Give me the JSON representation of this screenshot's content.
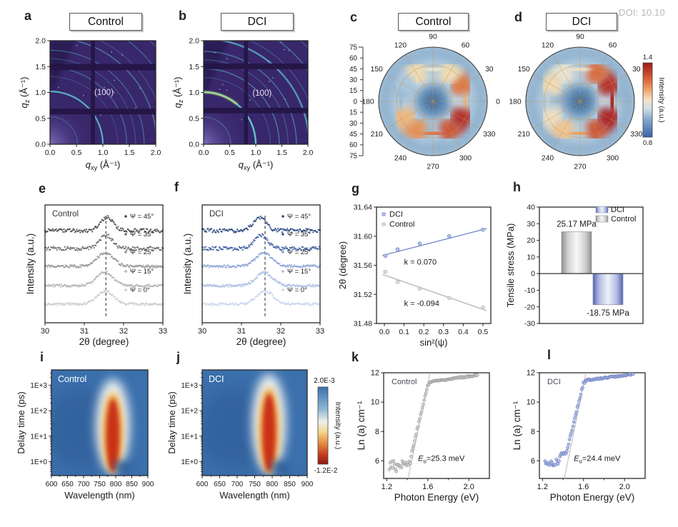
{
  "page": {
    "doi_text": "DOI: 10.10",
    "background": "#ffffff",
    "colors": {
      "giwaxs_bg": "#38276b",
      "giwaxs_gap": "#241546",
      "giwaxs_ring": "#5fc6ce",
      "ta_bg": "#3b70ac",
      "ta_core": "#c93318",
      "dci_blue": "#7288cc",
      "control_gray": "#b4b4b4",
      "polar_low": "#3a63a8",
      "polar_high": "#aa1e1f"
    }
  },
  "chart_data": [
    {
      "letter": "a",
      "type": "heatmap",
      "panel_title": "Control",
      "xlabel": "*q*_{xy} (Å⁻¹)",
      "ylabel": "*q*_{z} (Å⁻¹)",
      "xlim": [
        0,
        2
      ],
      "ylim": [
        0,
        2
      ],
      "xticks": [
        0,
        0.5,
        1,
        1.5,
        2
      ],
      "xtick_labels": [
        "0.0",
        "0.5",
        "1.0",
        "1.5",
        "2.0"
      ],
      "yticks": [
        0,
        0.5,
        1,
        1.5,
        2
      ],
      "ytick_labels": [
        "0.0",
        "0.5",
        "1.0",
        "1.5",
        "2.0"
      ],
      "annotation": "(100)",
      "annotation_pos": [
        1.02,
        0.93
      ],
      "rings": [
        {
          "q": 0.52,
          "o": 0.3,
          "w": 1.3
        },
        {
          "q": 1.0,
          "o": 0.85,
          "w": 2.2
        },
        {
          "q": 1.28,
          "o": 0.22,
          "w": 1.2
        },
        {
          "q": 1.45,
          "o": 0.42,
          "w": 1.4
        },
        {
          "q": 1.62,
          "o": 0.28,
          "w": 1.2
        },
        {
          "q": 1.78,
          "o": 0.4,
          "w": 1.4
        },
        {
          "q": 2.02,
          "o": 0.5,
          "w": 1.6
        },
        {
          "q": 2.18,
          "o": 0.28,
          "w": 1.2
        },
        {
          "q": 2.45,
          "o": 0.38,
          "w": 1.4
        },
        {
          "q": 2.72,
          "o": 0.3,
          "w": 1.3
        }
      ],
      "gaps_h": [
        [
          0.565,
          0.675
        ],
        [
          1.4,
          1.52
        ]
      ],
      "gaps_v": [
        [
          0.775,
          0.85
        ]
      ]
    },
    {
      "letter": "b",
      "type": "heatmap",
      "panel_title": "DCI",
      "xlabel": "*q*_{xy} (Å⁻¹)",
      "ylabel": "*q*_{z} (Å⁻¹)",
      "xlim": [
        0,
        2
      ],
      "ylim": [
        0,
        2
      ],
      "xticks": [
        0,
        0.5,
        1,
        1.5,
        2
      ],
      "xtick_labels": [
        "0.0",
        "0.5",
        "1.0",
        "1.5",
        "2.0"
      ],
      "yticks": [
        0,
        0.5,
        1,
        1.5,
        2
      ],
      "ytick_labels": [
        "0.0",
        "0.5",
        "1.0",
        "1.5",
        "2.0"
      ],
      "annotation": "(100)",
      "annotation_pos": [
        1.12,
        0.93
      ],
      "rings": [
        {
          "q": 0.52,
          "o": 0.35,
          "w": 1.3
        },
        {
          "q": 1.0,
          "o": 1.0,
          "w": 2.4
        },
        {
          "q": 1.28,
          "o": 0.28,
          "w": 1.2
        },
        {
          "q": 1.45,
          "o": 0.5,
          "w": 1.5
        },
        {
          "q": 1.62,
          "o": 0.32,
          "w": 1.2
        },
        {
          "q": 1.78,
          "o": 0.48,
          "w": 1.5
        },
        {
          "q": 2.02,
          "o": 0.7,
          "w": 2.4
        },
        {
          "q": 2.18,
          "o": 0.32,
          "w": 1.2
        },
        {
          "q": 2.45,
          "o": 0.45,
          "w": 1.5
        },
        {
          "q": 2.72,
          "o": 0.35,
          "w": 1.3
        }
      ],
      "highlight": {
        "q": 1.0,
        "a1": 50,
        "a2": 96
      },
      "gaps_h": [
        [
          0.595,
          0.7
        ],
        [
          1.44,
          1.55
        ]
      ],
      "gaps_v": [
        [
          0.775,
          0.85
        ]
      ]
    },
    {
      "letter": "c",
      "type": "polar_heatmap",
      "panel_title": "Control",
      "angle_tick_labels": [
        "0",
        "30",
        "60",
        "90",
        "120",
        "150",
        "180",
        "210",
        "240",
        "270",
        "300",
        "330"
      ],
      "radial_tick_labels": [
        "75",
        "60",
        "45",
        "30",
        "15",
        "0",
        "15",
        "30",
        "45",
        "60",
        "75"
      ],
      "has_radial_axis": true,
      "intensity_range": [
        0.8,
        1.4
      ],
      "ring_intensity": {
        "0": 1.18,
        "30": 1.28,
        "60": 1.12,
        "90": 1.08,
        "120": 1.12,
        "150": 0.98,
        "180": 0.96,
        "210": 1.18,
        "240": 1.24,
        "270": 1.28,
        "300": 1.33,
        "330": 1.38
      }
    },
    {
      "letter": "d",
      "type": "polar_heatmap",
      "panel_title": "DCI",
      "angle_tick_labels": [
        "0",
        "30",
        "60",
        "90",
        "120",
        "150",
        "180",
        "210",
        "240",
        "270",
        "300",
        "330"
      ],
      "radial_tick_labels": [
        "75",
        "60",
        "45",
        "30",
        "15",
        "0",
        "15",
        "30",
        "45",
        "60",
        "75"
      ],
      "has_radial_axis": false,
      "intensity_range": [
        0.8,
        1.4
      ],
      "ring_intensity": {
        "0": 1.4,
        "30": 1.38,
        "60": 1.3,
        "90": 1.1,
        "120": 1.08,
        "150": 1.12,
        "180": 1.0,
        "210": 1.1,
        "240": 1.16,
        "270": 1.22,
        "300": 1.33,
        "330": 1.4
      },
      "colorbar": {
        "top_label": "1.4",
        "bottom_label": "0.8",
        "label": "Intensity (a.u.)"
      }
    },
    {
      "letter": "e",
      "type": "line",
      "inner_label": "Control",
      "xlabel": "2θ (degree)",
      "ylabel": "Intensity (a.u.)",
      "xlim": [
        30,
        33
      ],
      "xticks": [
        30,
        31,
        32,
        33
      ],
      "xtick_labels": [
        "30",
        "31",
        "32",
        "33"
      ],
      "dash_x": 31.55,
      "series": [
        {
          "label": "Ψ = 45°",
          "color": "#4a4a4a",
          "center": 31.58
        },
        {
          "label": "Ψ = 35°",
          "color": "#6b6b6b",
          "center": 31.56
        },
        {
          "label": "Ψ = 25°",
          "color": "#949494",
          "center": 31.53
        },
        {
          "label": "Ψ = 15°",
          "color": "#b2b2b2",
          "center": 31.52
        },
        {
          "label": "Ψ = 0°",
          "color": "#cccccc",
          "center": 31.53
        }
      ]
    },
    {
      "letter": "f",
      "type": "line",
      "inner_label": "DCI",
      "xlabel": "2θ (degree)",
      "ylabel": "Intensity (a.u.)",
      "xlim": [
        30,
        33
      ],
      "xticks": [
        30,
        31,
        32,
        33
      ],
      "xtick_labels": [
        "30",
        "31",
        "32",
        "33"
      ],
      "dash_x": 31.6,
      "series": [
        {
          "label": "Ψ = 45°",
          "color": "#27477e",
          "center": 31.46
        },
        {
          "label": "Ψ = 35°",
          "color": "#3c5d9e",
          "center": 31.5
        },
        {
          "label": "Ψ = 25°",
          "color": "#8aa2d4",
          "center": 31.57
        },
        {
          "label": "Ψ = 15°",
          "color": "#a9bce1",
          "center": 31.58
        },
        {
          "label": "Ψ = 0°",
          "color": "#c9d5ee",
          "center": 31.6
        }
      ]
    },
    {
      "letter": "g",
      "type": "scatter_line",
      "xlabel": "sin²(ψ)",
      "ylabel": "2θ (degree)",
      "xlim": [
        -0.04,
        0.54
      ],
      "ylim": [
        31.48,
        31.64
      ],
      "xticks": [
        0,
        0.1,
        0.2,
        0.3,
        0.4,
        0.5
      ],
      "xtick_labels": [
        "0.0",
        "0.1",
        "0.2",
        "0.3",
        "0.4",
        "0.5"
      ],
      "yticks": [
        31.48,
        31.52,
        31.56,
        31.6,
        31.64
      ],
      "ytick_labels": [
        "31.48",
        "31.52",
        "31.56",
        "31.60",
        "31.64"
      ],
      "series": [
        {
          "name": "DCI",
          "color": "#7288cc",
          "light": "#b9c4ea",
          "points": [
            [
              0.005,
              31.573
            ],
            [
              0.067,
              31.582
            ],
            [
              0.179,
              31.59
            ],
            [
              0.329,
              31.6
            ],
            [
              0.5,
              31.609
            ]
          ],
          "fit": [
            [
              -0.01,
              31.5735
            ],
            [
              0.52,
              31.6105
            ]
          ],
          "slope_label": "k = 0.070",
          "slope_label_pos": [
            0.1,
            31.561
          ]
        },
        {
          "name": "Control",
          "color": "#b4b4b4",
          "light": "#dedede",
          "points": [
            [
              0.005,
              31.551
            ],
            [
              0.067,
              31.537
            ],
            [
              0.179,
              31.528
            ],
            [
              0.329,
              31.515
            ],
            [
              0.5,
              31.502
            ]
          ],
          "fit": [
            [
              -0.01,
              31.5475
            ],
            [
              0.52,
              31.4975
            ]
          ],
          "slope_label": "k = -0.094",
          "slope_label_pos": [
            0.1,
            31.504
          ]
        }
      ]
    },
    {
      "letter": "h",
      "type": "bar",
      "ylabel": "Tensile stress (MPa)",
      "ylim": [
        -30,
        40
      ],
      "yticks": [
        -30,
        -20,
        -10,
        0,
        10,
        20,
        30,
        40
      ],
      "ytick_labels": [
        "-30",
        "-20",
        "-10",
        "0",
        "10",
        "20",
        "30",
        "40"
      ],
      "bars": [
        {
          "name": "Control",
          "value": 25.17,
          "value_label": "25.17 MPa",
          "key": "control"
        },
        {
          "name": "DCI",
          "value": -18.75,
          "value_label": "-18.75 MPa",
          "key": "dci"
        }
      ],
      "legend": [
        {
          "label": "DCI",
          "key": "dci"
        },
        {
          "label": "Control",
          "key": "control"
        }
      ],
      "colors": {
        "dci_edge": "#5066b5",
        "dci_mid": "#eef2fc",
        "control_edge": "#8f8f8f",
        "control_mid": "#f8f8f8"
      }
    },
    {
      "letter": "i",
      "type": "heatmap",
      "inner_label": "Control",
      "xlabel": "Wavelength (nm)",
      "ylabel": "Delay time (ps)",
      "xlim": [
        600,
        900
      ],
      "xticks": [
        600,
        650,
        700,
        750,
        800,
        850,
        900
      ],
      "xtick_labels": [
        "600",
        "650",
        "700",
        "750",
        "800",
        "850",
        "900"
      ],
      "ytick_labels": [
        "1E+0",
        "1E+1",
        "1E+2",
        "1E+3"
      ],
      "streak_nm": 791,
      "streak_top_exp": 2.75
    },
    {
      "letter": "j",
      "type": "heatmap",
      "inner_label": "DCI",
      "xlabel": "Wavelength (nm)",
      "ylabel": "Delay time (ps)",
      "xlim": [
        600,
        900
      ],
      "xticks": [
        600,
        650,
        700,
        750,
        800,
        850,
        900
      ],
      "xtick_labels": [
        "600",
        "650",
        "700",
        "750",
        "800",
        "850",
        "900"
      ],
      "ytick_labels": [
        "1E+0",
        "1E+1",
        "1E+2",
        "1E+3"
      ],
      "streak_nm": 791,
      "streak_top_exp": 2.95,
      "colorbar": {
        "top_label": "2.0E-3",
        "bottom_label": "-1.2E-2",
        "label": "Intensity (a.u.)"
      }
    },
    {
      "letter": "k",
      "type": "scatter",
      "inner_label": "Control",
      "xlabel": "Photon Energy (eV)",
      "ylabel": "Ln (a) cm⁻¹",
      "xlim": [
        1.17,
        2.2
      ],
      "ylim": [
        4.8,
        12
      ],
      "xticks": [
        1.2,
        1.6,
        2.0
      ],
      "xtick_labels": [
        "1.2",
        "1.6",
        "2.0"
      ],
      "minor_xticks": [
        1.4,
        1.8
      ],
      "yticks": [
        6,
        8,
        10,
        12
      ],
      "ytick_labels": [
        "6",
        "8",
        "10",
        "12"
      ],
      "annotation": "*E*_{u}=25.3 meV",
      "annotation_pos": [
        1.505,
        6.0
      ],
      "color": "#9a9a9a",
      "light": "#d2d2d2",
      "keypoints": [
        [
          1.225,
          5.75
        ],
        [
          1.43,
          5.85
        ],
        [
          1.445,
          6.6
        ],
        [
          1.6,
          11.15
        ],
        [
          1.63,
          11.4
        ],
        [
          2.09,
          11.85
        ]
      ],
      "fit": [
        [
          1.393,
          4.3
        ],
        [
          1.645,
          12.8
        ]
      ],
      "noise_zones": [
        [
          1.45,
          0.27
        ],
        [
          1.62,
          0.07
        ],
        [
          2.2,
          0.05
        ]
      ]
    },
    {
      "letter": "l",
      "type": "scatter",
      "inner_label": "DCI",
      "xlabel": "Photon Energy (eV)",
      "ylabel": "Ln (a) cm⁻¹",
      "xlim": [
        1.17,
        2.2
      ],
      "ylim": [
        4.8,
        12
      ],
      "xticks": [
        1.2,
        1.6,
        2.0
      ],
      "xtick_labels": [
        "1.2",
        "1.6",
        "2.0"
      ],
      "minor_xticks": [
        1.4,
        1.8
      ],
      "yticks": [
        6,
        8,
        10,
        12
      ],
      "ytick_labels": [
        "6",
        "8",
        "10",
        "12"
      ],
      "annotation": "*E*_{u}=24.4 meV",
      "annotation_pos": [
        1.505,
        6.0
      ],
      "color": "#7083c5",
      "light": "#b0bce4",
      "keypoints": [
        [
          1.225,
          5.85
        ],
        [
          1.36,
          5.9
        ],
        [
          1.375,
          6.45
        ],
        [
          1.43,
          6.5
        ],
        [
          1.445,
          6.9
        ],
        [
          1.6,
          11.3
        ],
        [
          1.63,
          11.5
        ],
        [
          2.09,
          11.9
        ]
      ],
      "fit": [
        [
          1.398,
          4.3
        ],
        [
          1.648,
          12.8
        ]
      ],
      "noise_zones": [
        [
          1.36,
          0.2
        ],
        [
          1.45,
          0.09
        ],
        [
          1.62,
          0.07
        ],
        [
          2.2,
          0.05
        ]
      ]
    }
  ]
}
